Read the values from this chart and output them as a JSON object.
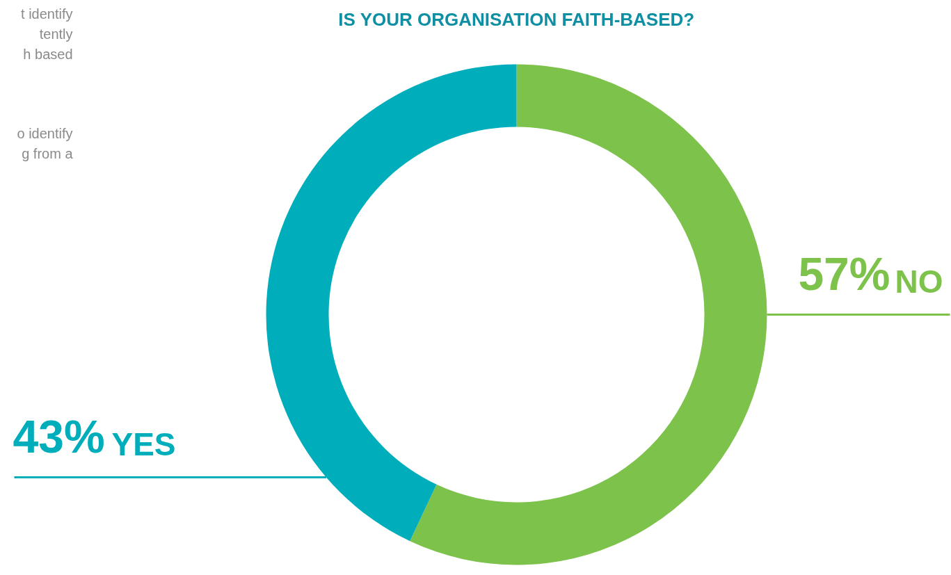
{
  "chart_data": {
    "type": "donut",
    "title": "IS YOUR ORGANISATION FAITH-BASED?",
    "categories": [
      "NO",
      "YES"
    ],
    "values": [
      57,
      43
    ],
    "colors": [
      "#7dc24b",
      "#00adbb"
    ],
    "value_labels": [
      "57%",
      "43%"
    ],
    "annotations": [
      "t identify",
      "tently",
      "h based",
      "o identify",
      "g from a"
    ]
  }
}
